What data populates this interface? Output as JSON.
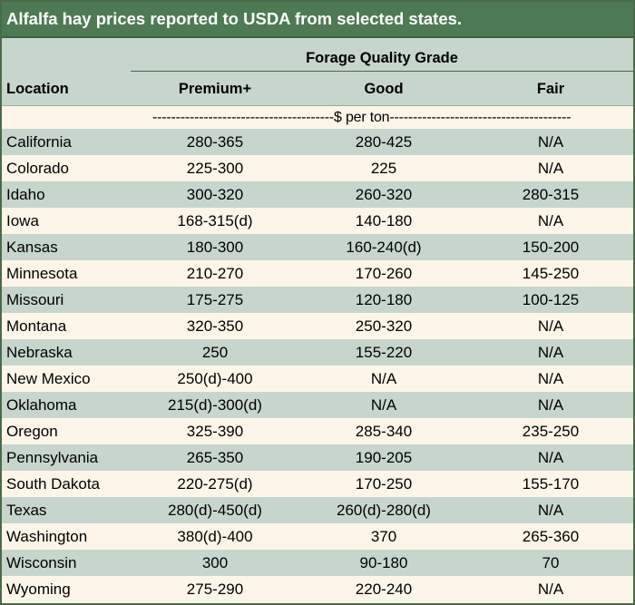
{
  "title": "Alfalfa hay prices reported to USDA from selected states.",
  "header": {
    "grade_group": "Forage Quality Grade",
    "location": "Location",
    "premium": "Premium+",
    "good": "Good",
    "fair": "Fair"
  },
  "units": "---------------------------------------$ per ton---------------------------------------",
  "rows": [
    {
      "location": "California",
      "premium": "280-365",
      "good": "280-425",
      "fair": "N/A"
    },
    {
      "location": "Colorado",
      "premium": "225-300",
      "good": "225",
      "fair": "N/A"
    },
    {
      "location": "Idaho",
      "premium": "300-320",
      "good": "260-320",
      "fair": "280-315"
    },
    {
      "location": "Iowa",
      "premium": "168-315(d)",
      "good": "140-180",
      "fair": "N/A"
    },
    {
      "location": "Kansas",
      "premium": "180-300",
      "good": "160-240(d)",
      "fair": "150-200"
    },
    {
      "location": "Minnesota",
      "premium": "210-270",
      "good": "170-260",
      "fair": "145-250"
    },
    {
      "location": "Missouri",
      "premium": "175-275",
      "good": "120-180",
      "fair": "100-125"
    },
    {
      "location": "Montana",
      "premium": "320-350",
      "good": "250-320",
      "fair": "N/A"
    },
    {
      "location": "Nebraska",
      "premium": "250",
      "good": "155-220",
      "fair": "N/A"
    },
    {
      "location": "New Mexico",
      "premium": "250(d)-400",
      "good": "N/A",
      "fair": "N/A"
    },
    {
      "location": "Oklahoma",
      "premium": "215(d)-300(d)",
      "good": "N/A",
      "fair": "N/A"
    },
    {
      "location": "Oregon",
      "premium": "325-390",
      "good": "285-340",
      "fair": "235-250"
    },
    {
      "location": "Pennsylvania",
      "premium": "265-350",
      "good": "190-205",
      "fair": "N/A"
    },
    {
      "location": "South Dakota",
      "premium": "220-275(d)",
      "good": "170-250",
      "fair": "155-170"
    },
    {
      "location": "Texas",
      "premium": "280(d)-450(d)",
      "good": "260(d)-280(d)",
      "fair": "N/A"
    },
    {
      "location": "Washington",
      "premium": "380(d)-400",
      "good": "370",
      "fair": "265-360"
    },
    {
      "location": "Wisconsin",
      "premium": "300",
      "good": "90-180",
      "fair": "70"
    },
    {
      "location": "Wyoming",
      "premium": "275-290",
      "good": "220-240",
      "fair": "N/A"
    }
  ],
  "colors": {
    "title_bg": "#4d7a52",
    "band_green": "#c6d6cc",
    "band_cream": "#fdf6e8"
  }
}
